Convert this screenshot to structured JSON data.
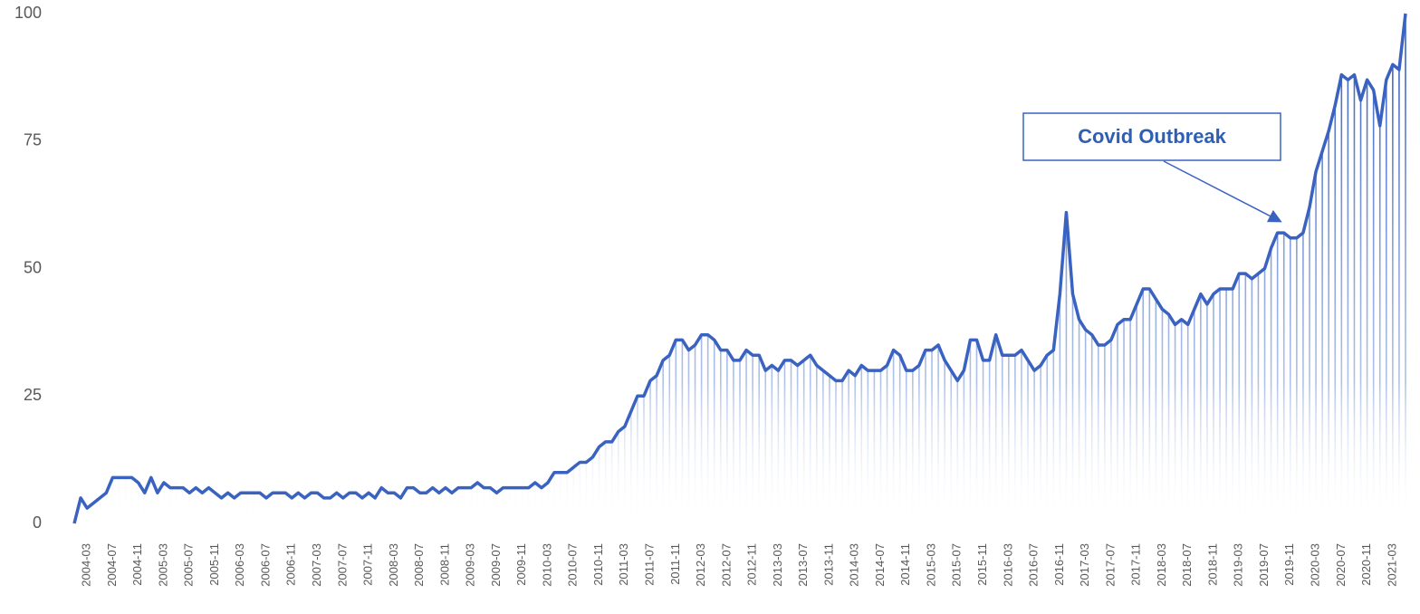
{
  "chart_data": {
    "type": "line",
    "categories": [
      null,
      null,
      "2004-03",
      null,
      null,
      null,
      "2004-07",
      null,
      null,
      null,
      "2004-11",
      null,
      null,
      null,
      "2005-03",
      null,
      null,
      null,
      "2005-07",
      null,
      null,
      null,
      "2005-11",
      null,
      null,
      null,
      "2006-03",
      null,
      null,
      null,
      "2006-07",
      null,
      null,
      null,
      "2006-11",
      null,
      null,
      null,
      "2007-03",
      null,
      null,
      null,
      "2007-07",
      null,
      null,
      null,
      "2007-11",
      null,
      null,
      null,
      "2008-03",
      null,
      null,
      null,
      "2008-07",
      null,
      null,
      null,
      "2008-11",
      null,
      null,
      null,
      "2009-03",
      null,
      null,
      null,
      "2009-07",
      null,
      null,
      null,
      "2009-11",
      null,
      null,
      null,
      "2010-03",
      null,
      null,
      null,
      "2010-07",
      null,
      null,
      null,
      "2010-11",
      null,
      null,
      null,
      "2011-03",
      null,
      null,
      null,
      "2011-07",
      null,
      null,
      null,
      "2011-11",
      null,
      null,
      null,
      "2012-03",
      null,
      null,
      null,
      "2012-07",
      null,
      null,
      null,
      "2012-11",
      null,
      null,
      null,
      "2013-03",
      null,
      null,
      null,
      "2013-07",
      null,
      null,
      null,
      "2013-11",
      null,
      null,
      null,
      "2014-03",
      null,
      null,
      null,
      "2014-07",
      null,
      null,
      null,
      "2014-11",
      null,
      null,
      null,
      "2015-03",
      null,
      null,
      null,
      "2015-07",
      null,
      null,
      null,
      "2015-11",
      null,
      null,
      null,
      "2016-03",
      null,
      null,
      null,
      "2016-07",
      null,
      null,
      null,
      "2016-11",
      null,
      null,
      null,
      "2017-03",
      null,
      null,
      null,
      "2017-07",
      null,
      null,
      null,
      "2017-11",
      null,
      null,
      null,
      "2018-03",
      null,
      null,
      null,
      "2018-07",
      null,
      null,
      null,
      "2018-11",
      null,
      null,
      null,
      "2019-03",
      null,
      null,
      null,
      "2019-07",
      null,
      null,
      null,
      "2019-11",
      null,
      null,
      null,
      "2020-03",
      null,
      null,
      null,
      "2020-07",
      null,
      null,
      null,
      "2020-11",
      null,
      null,
      null,
      "2021-03",
      null,
      null
    ],
    "values": [
      0,
      5,
      3,
      4,
      5,
      6,
      9,
      9,
      9,
      9,
      8,
      6,
      9,
      6,
      8,
      7,
      7,
      7,
      6,
      7,
      6,
      7,
      6,
      5,
      6,
      5,
      6,
      6,
      6,
      6,
      5,
      6,
      6,
      6,
      5,
      6,
      5,
      6,
      6,
      5,
      5,
      6,
      5,
      6,
      6,
      5,
      6,
      5,
      7,
      6,
      6,
      5,
      7,
      7,
      6,
      6,
      7,
      6,
      7,
      6,
      7,
      7,
      7,
      8,
      7,
      7,
      6,
      7,
      7,
      7,
      7,
      7,
      8,
      7,
      8,
      10,
      10,
      10,
      11,
      12,
      12,
      13,
      15,
      16,
      16,
      18,
      19,
      22,
      25,
      25,
      28,
      29,
      32,
      33,
      36,
      36,
      34,
      35,
      37,
      37,
      36,
      34,
      34,
      32,
      32,
      34,
      33,
      33,
      30,
      31,
      30,
      32,
      32,
      31,
      32,
      33,
      31,
      30,
      29,
      28,
      28,
      30,
      29,
      31,
      30,
      30,
      30,
      31,
      34,
      33,
      30,
      30,
      31,
      34,
      34,
      35,
      32,
      30,
      28,
      30,
      36,
      36,
      32,
      32,
      37,
      33,
      33,
      33,
      34,
      32,
      30,
      31,
      33,
      34,
      45,
      61,
      45,
      40,
      38,
      37,
      35,
      35,
      36,
      39,
      40,
      40,
      43,
      46,
      46,
      44,
      42,
      41,
      39,
      40,
      39,
      42,
      45,
      43,
      45,
      46,
      46,
      46,
      49,
      49,
      48,
      49,
      50,
      54,
      57,
      57,
      56,
      56,
      57,
      62,
      69,
      73,
      77,
      82,
      88,
      87,
      88,
      83,
      87,
      85,
      78,
      87,
      90,
      89,
      100
    ],
    "color": "#3a62c0",
    "ylim": [
      0,
      100
    ],
    "yticks": [
      0,
      25,
      50,
      75,
      100
    ],
    "annotation": "Covid Outbreak"
  }
}
